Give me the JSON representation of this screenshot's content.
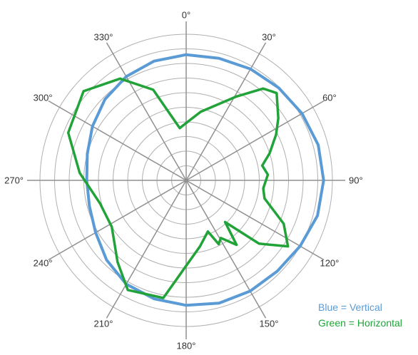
{
  "chart_data": {
    "type": "polar-line",
    "radial_max": 10,
    "rings": 10,
    "spokes_deg": [
      0,
      30,
      60,
      90,
      120,
      150,
      180,
      210,
      240,
      270,
      300,
      330
    ],
    "angle_labels": [
      "0°",
      "30°",
      "60°",
      "90°",
      "120°",
      "150°",
      "180°",
      "210°",
      "240°",
      "270°",
      "300°",
      "330°"
    ],
    "grid": true,
    "series": [
      {
        "name": "Vertical",
        "color": "#5b9bd5",
        "angles": [
          0,
          15,
          30,
          45,
          60,
          75,
          90,
          105,
          120,
          135,
          150,
          165,
          180,
          195,
          210,
          225,
          240,
          255,
          270,
          285,
          300,
          315,
          330,
          345
        ],
        "values": [
          8.6,
          8.65,
          8.8,
          8.95,
          9.15,
          9.35,
          9.4,
          9.3,
          9.0,
          8.8,
          8.75,
          8.7,
          8.55,
          8.4,
          8.2,
          7.7,
          7.15,
          6.85,
          6.8,
          7.0,
          7.4,
          7.85,
          8.2,
          8.45
        ]
      },
      {
        "name": "Horizontal",
        "color": "#22a339",
        "angles": [
          353,
          3,
          12,
          31,
          40,
          46,
          56,
          63,
          72,
          79,
          86,
          96,
          103,
          114,
          123,
          131,
          137,
          142,
          149,
          153,
          157,
          168,
          191,
          208,
          220,
          238,
          255,
          274,
          292,
          311,
          327,
          340
        ],
        "values": [
          3.6,
          4.1,
          4.8,
          6.7,
          8.2,
          8.6,
          7.6,
          6.9,
          6.0,
          5.3,
          5.6,
          5.3,
          5.5,
          7.3,
          8.3,
          6.6,
          3.9,
          5.6,
          4.6,
          4.9,
          3.8,
          4.6,
          8.2,
          8.5,
          7.3,
          6.0,
          6.1,
          7.3,
          8.7,
          9.3,
          8.3,
          6.6
        ]
      }
    ]
  },
  "legend": {
    "vertical": "Blue = Vertical",
    "horizontal": "Green = Horizontal"
  },
  "colors": {
    "grid": "#b0b0b0",
    "spokes": "#909090",
    "label": "#333333"
  }
}
